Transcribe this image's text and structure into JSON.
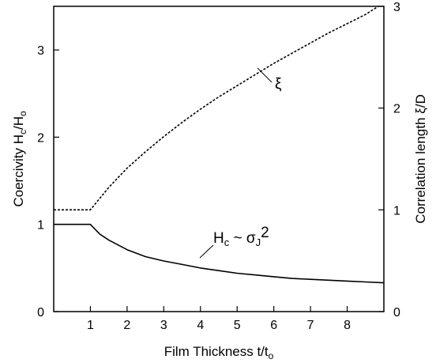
{
  "chart_data": {
    "type": "line",
    "xlabel": "Film Thickness t/t",
    "xlabel_sub": "o",
    "ylabel_left": "Coercivity H",
    "ylabel_left_sub1": "c",
    "ylabel_left_mid": "/H",
    "ylabel_left_sub2": "o",
    "ylabel_right": "Correlation length ξ/D",
    "xlim": [
      0,
      9
    ],
    "ylim_left": [
      0,
      3.5
    ],
    "ylim_right": [
      0,
      3
    ],
    "x_ticks": [
      1,
      2,
      3,
      4,
      5,
      6,
      7,
      8
    ],
    "y_ticks_left": [
      0,
      1,
      2,
      3
    ],
    "y_ticks_right": [
      0,
      1,
      2,
      3
    ],
    "series": [
      {
        "name": "ξ",
        "axis": "right",
        "style": "dashed",
        "x": [
          0,
          0.5,
          1.0,
          1.5,
          2,
          2.5,
          3,
          3.5,
          4,
          4.5,
          5,
          5.5,
          6,
          6.5,
          7,
          7.5,
          8,
          8.5,
          8.85
        ],
        "y": [
          1.0,
          1.0,
          1.0,
          1.22,
          1.41,
          1.57,
          1.72,
          1.86,
          1.99,
          2.11,
          2.22,
          2.33,
          2.44,
          2.54,
          2.64,
          2.74,
          2.83,
          2.92,
          3.0
        ]
      },
      {
        "name": "Hc ~ σJ²",
        "axis": "left",
        "style": "solid",
        "x": [
          0,
          0.5,
          1.0,
          1.25,
          1.5,
          2,
          2.5,
          3,
          3.5,
          4,
          4.5,
          5,
          5.5,
          6,
          6.5,
          7,
          7.5,
          8,
          8.5,
          9
        ],
        "y": [
          1.0,
          1.0,
          1.0,
          0.89,
          0.82,
          0.71,
          0.63,
          0.58,
          0.54,
          0.5,
          0.47,
          0.44,
          0.42,
          0.4,
          0.38,
          0.37,
          0.36,
          0.35,
          0.34,
          0.33
        ]
      }
    ],
    "annotations": {
      "xi": "ξ",
      "hc_main": "H",
      "hc_sub_c": "c",
      "hc_tilde": " ~ σ",
      "hc_sub_j": "J",
      "hc_pow": "2"
    }
  }
}
